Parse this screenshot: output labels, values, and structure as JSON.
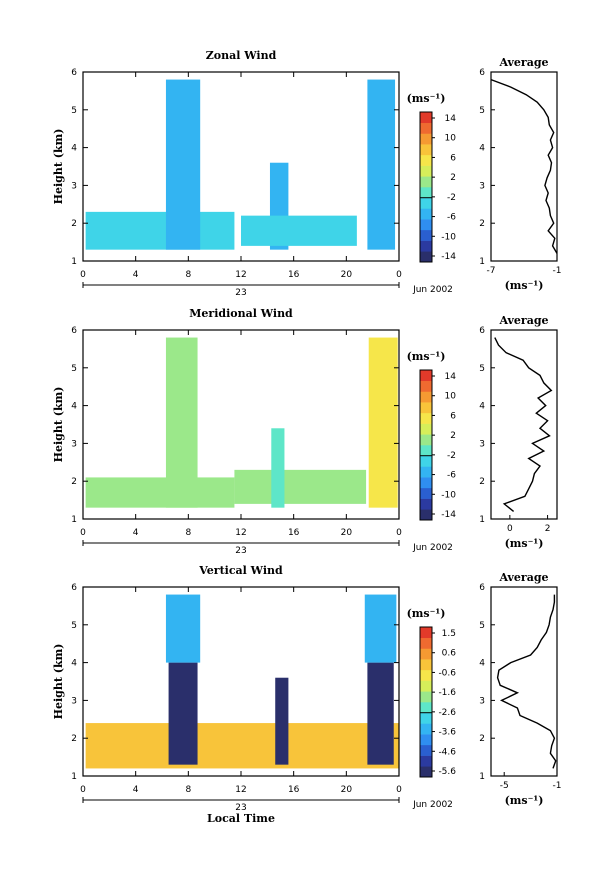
{
  "chart_data": [
    {
      "type": "heatmap",
      "title": "Zonal Wind",
      "xlabel": "",
      "ylabel": "Height (km)",
      "xlim": [
        0,
        24
      ],
      "ylim": [
        1,
        6
      ],
      "x_ticks": [
        "0",
        "4",
        "8",
        "12",
        "16",
        "20",
        "0"
      ],
      "y_ticks": [
        "1",
        "2",
        "3",
        "4",
        "5",
        "6"
      ],
      "date_label": "23",
      "month_label": "Jun 2002",
      "colorbar": {
        "unit": "(ms⁻¹)",
        "labels": [
          "14",
          "10",
          "6",
          "2",
          "-2",
          "-6",
          "-10",
          "-14"
        ],
        "range": [
          -16,
          16
        ]
      },
      "profile": {
        "title": "Average",
        "xlabel": "(ms⁻¹)",
        "x_ticks": [
          "-7",
          "-1"
        ],
        "xlim": [
          -7,
          -1
        ],
        "heights": [
          1.2,
          1.4,
          1.6,
          1.8,
          2.0,
          2.2,
          2.4,
          2.6,
          2.8,
          3.0,
          3.2,
          3.4,
          3.6,
          3.8,
          4.0,
          4.2,
          4.4,
          4.6,
          4.8,
          5.0,
          5.2,
          5.4,
          5.6,
          5.8
        ],
        "values": [
          -1.0,
          -1.4,
          -1.2,
          -1.8,
          -1.3,
          -1.6,
          -1.7,
          -2.0,
          -1.8,
          -2.1,
          -1.9,
          -1.6,
          -1.5,
          -1.8,
          -1.4,
          -1.6,
          -1.3,
          -1.7,
          -1.8,
          -2.2,
          -2.8,
          -3.8,
          -5.2,
          -7.0
        ]
      },
      "blocks": [
        {
          "x0": 0.2,
          "x1": 11.5,
          "y0": 1.3,
          "y1": 2.3,
          "v": -4
        },
        {
          "x0": 6.3,
          "x1": 8.9,
          "y0": 1.3,
          "y1": 5.8,
          "v": -6
        },
        {
          "x0": 14.2,
          "x1": 15.6,
          "y0": 1.3,
          "y1": 3.6,
          "v": -5
        },
        {
          "x0": 12.0,
          "x1": 20.8,
          "y0": 1.4,
          "y1": 2.2,
          "v": -4
        },
        {
          "x0": 21.6,
          "x1": 23.7,
          "y0": 1.3,
          "y1": 5.8,
          "v": -6
        }
      ]
    },
    {
      "type": "heatmap",
      "title": "Meridional Wind",
      "xlabel": "",
      "ylabel": "Height (km)",
      "xlim": [
        0,
        24
      ],
      "ylim": [
        1,
        6
      ],
      "x_ticks": [
        "0",
        "4",
        "8",
        "12",
        "16",
        "20",
        "0"
      ],
      "y_ticks": [
        "1",
        "2",
        "3",
        "4",
        "5",
        "6"
      ],
      "date_label": "23",
      "month_label": "Jun 2002",
      "colorbar": {
        "unit": "(ms⁻¹)",
        "labels": [
          "14",
          "10",
          "6",
          "2",
          "-2",
          "-6",
          "-10",
          "-14"
        ],
        "range": [
          -16,
          16
        ]
      },
      "profile": {
        "title": "Average",
        "xlabel": "(ms⁻¹)",
        "x_ticks": [
          "0",
          "2"
        ],
        "xlim": [
          -1,
          2.5
        ],
        "heights": [
          1.2,
          1.4,
          1.6,
          1.8,
          2.0,
          2.2,
          2.4,
          2.6,
          2.8,
          3.0,
          3.2,
          3.4,
          3.6,
          3.8,
          4.0,
          4.2,
          4.4,
          4.6,
          4.8,
          5.0,
          5.2,
          5.4,
          5.6,
          5.8
        ],
        "values": [
          0.2,
          -0.3,
          0.8,
          1.0,
          1.2,
          1.3,
          1.6,
          1.0,
          1.8,
          1.2,
          2.1,
          1.6,
          2.0,
          1.4,
          1.9,
          1.5,
          2.2,
          1.8,
          1.6,
          1.0,
          0.7,
          -0.2,
          -0.6,
          -0.8
        ]
      },
      "blocks": [
        {
          "x0": 0.2,
          "x1": 11.5,
          "y0": 1.3,
          "y1": 2.1,
          "v": 1
        },
        {
          "x0": 6.3,
          "x1": 8.7,
          "y0": 1.3,
          "y1": 5.8,
          "v": 2
        },
        {
          "x0": 11.5,
          "x1": 21.5,
          "y0": 1.4,
          "y1": 2.3,
          "v": 1
        },
        {
          "x0": 14.3,
          "x1": 15.3,
          "y0": 1.3,
          "y1": 3.4,
          "v": -1
        },
        {
          "x0": 21.7,
          "x1": 23.9,
          "y0": 1.3,
          "y1": 5.8,
          "v": 6
        }
      ]
    },
    {
      "type": "heatmap",
      "title": "Vertical Wind",
      "xlabel": "Local Time",
      "ylabel": "Height (km)",
      "xlim": [
        0,
        24
      ],
      "ylim": [
        1,
        6
      ],
      "x_ticks": [
        "0",
        "4",
        "8",
        "12",
        "16",
        "20",
        "0"
      ],
      "y_ticks": [
        "1",
        "2",
        "3",
        "4",
        "5",
        "6"
      ],
      "date_label": "23",
      "month_label": "Jun 2002",
      "colorbar": {
        "unit": "(ms⁻¹)",
        "labels": [
          "1.5",
          "0.6",
          "-0.6",
          "-1.6",
          "-2.6",
          "-3.6",
          "-4.6",
          "-5.6"
        ],
        "range": [
          -6,
          2
        ]
      },
      "profile": {
        "title": "Average",
        "xlabel": "(ms⁻¹)",
        "x_ticks": [
          "-5",
          "-1"
        ],
        "xlim": [
          -6,
          -1
        ],
        "heights": [
          1.2,
          1.4,
          1.6,
          1.8,
          2.0,
          2.2,
          2.4,
          2.6,
          2.8,
          3.0,
          3.2,
          3.4,
          3.6,
          3.8,
          4.0,
          4.2,
          4.4,
          4.6,
          4.8,
          5.0,
          5.2,
          5.4,
          5.6,
          5.8
        ],
        "values": [
          -1.3,
          -1.1,
          -1.5,
          -1.4,
          -1.2,
          -1.5,
          -2.5,
          -3.8,
          -4.0,
          -5.2,
          -4.0,
          -5.3,
          -5.5,
          -5.4,
          -4.5,
          -3.0,
          -2.5,
          -2.2,
          -1.8,
          -1.6,
          -1.5,
          -1.3,
          -1.2,
          -1.2
        ]
      },
      "blocks": [
        {
          "x0": 0.2,
          "x1": 24.0,
          "y0": 1.2,
          "y1": 2.4,
          "v": 0.2
        },
        {
          "x0": 6.5,
          "x1": 8.7,
          "y0": 1.3,
          "y1": 4.0,
          "v": -6
        },
        {
          "x0": 6.3,
          "x1": 8.9,
          "y0": 4.0,
          "y1": 5.8,
          "v": -3.2
        },
        {
          "x0": 14.6,
          "x1": 15.6,
          "y0": 1.3,
          "y1": 3.6,
          "v": -6
        },
        {
          "x0": 21.6,
          "x1": 23.6,
          "y0": 1.3,
          "y1": 4.0,
          "v": -6
        },
        {
          "x0": 21.4,
          "x1": 23.8,
          "y0": 4.0,
          "y1": 5.8,
          "v": -3.2
        }
      ]
    }
  ]
}
